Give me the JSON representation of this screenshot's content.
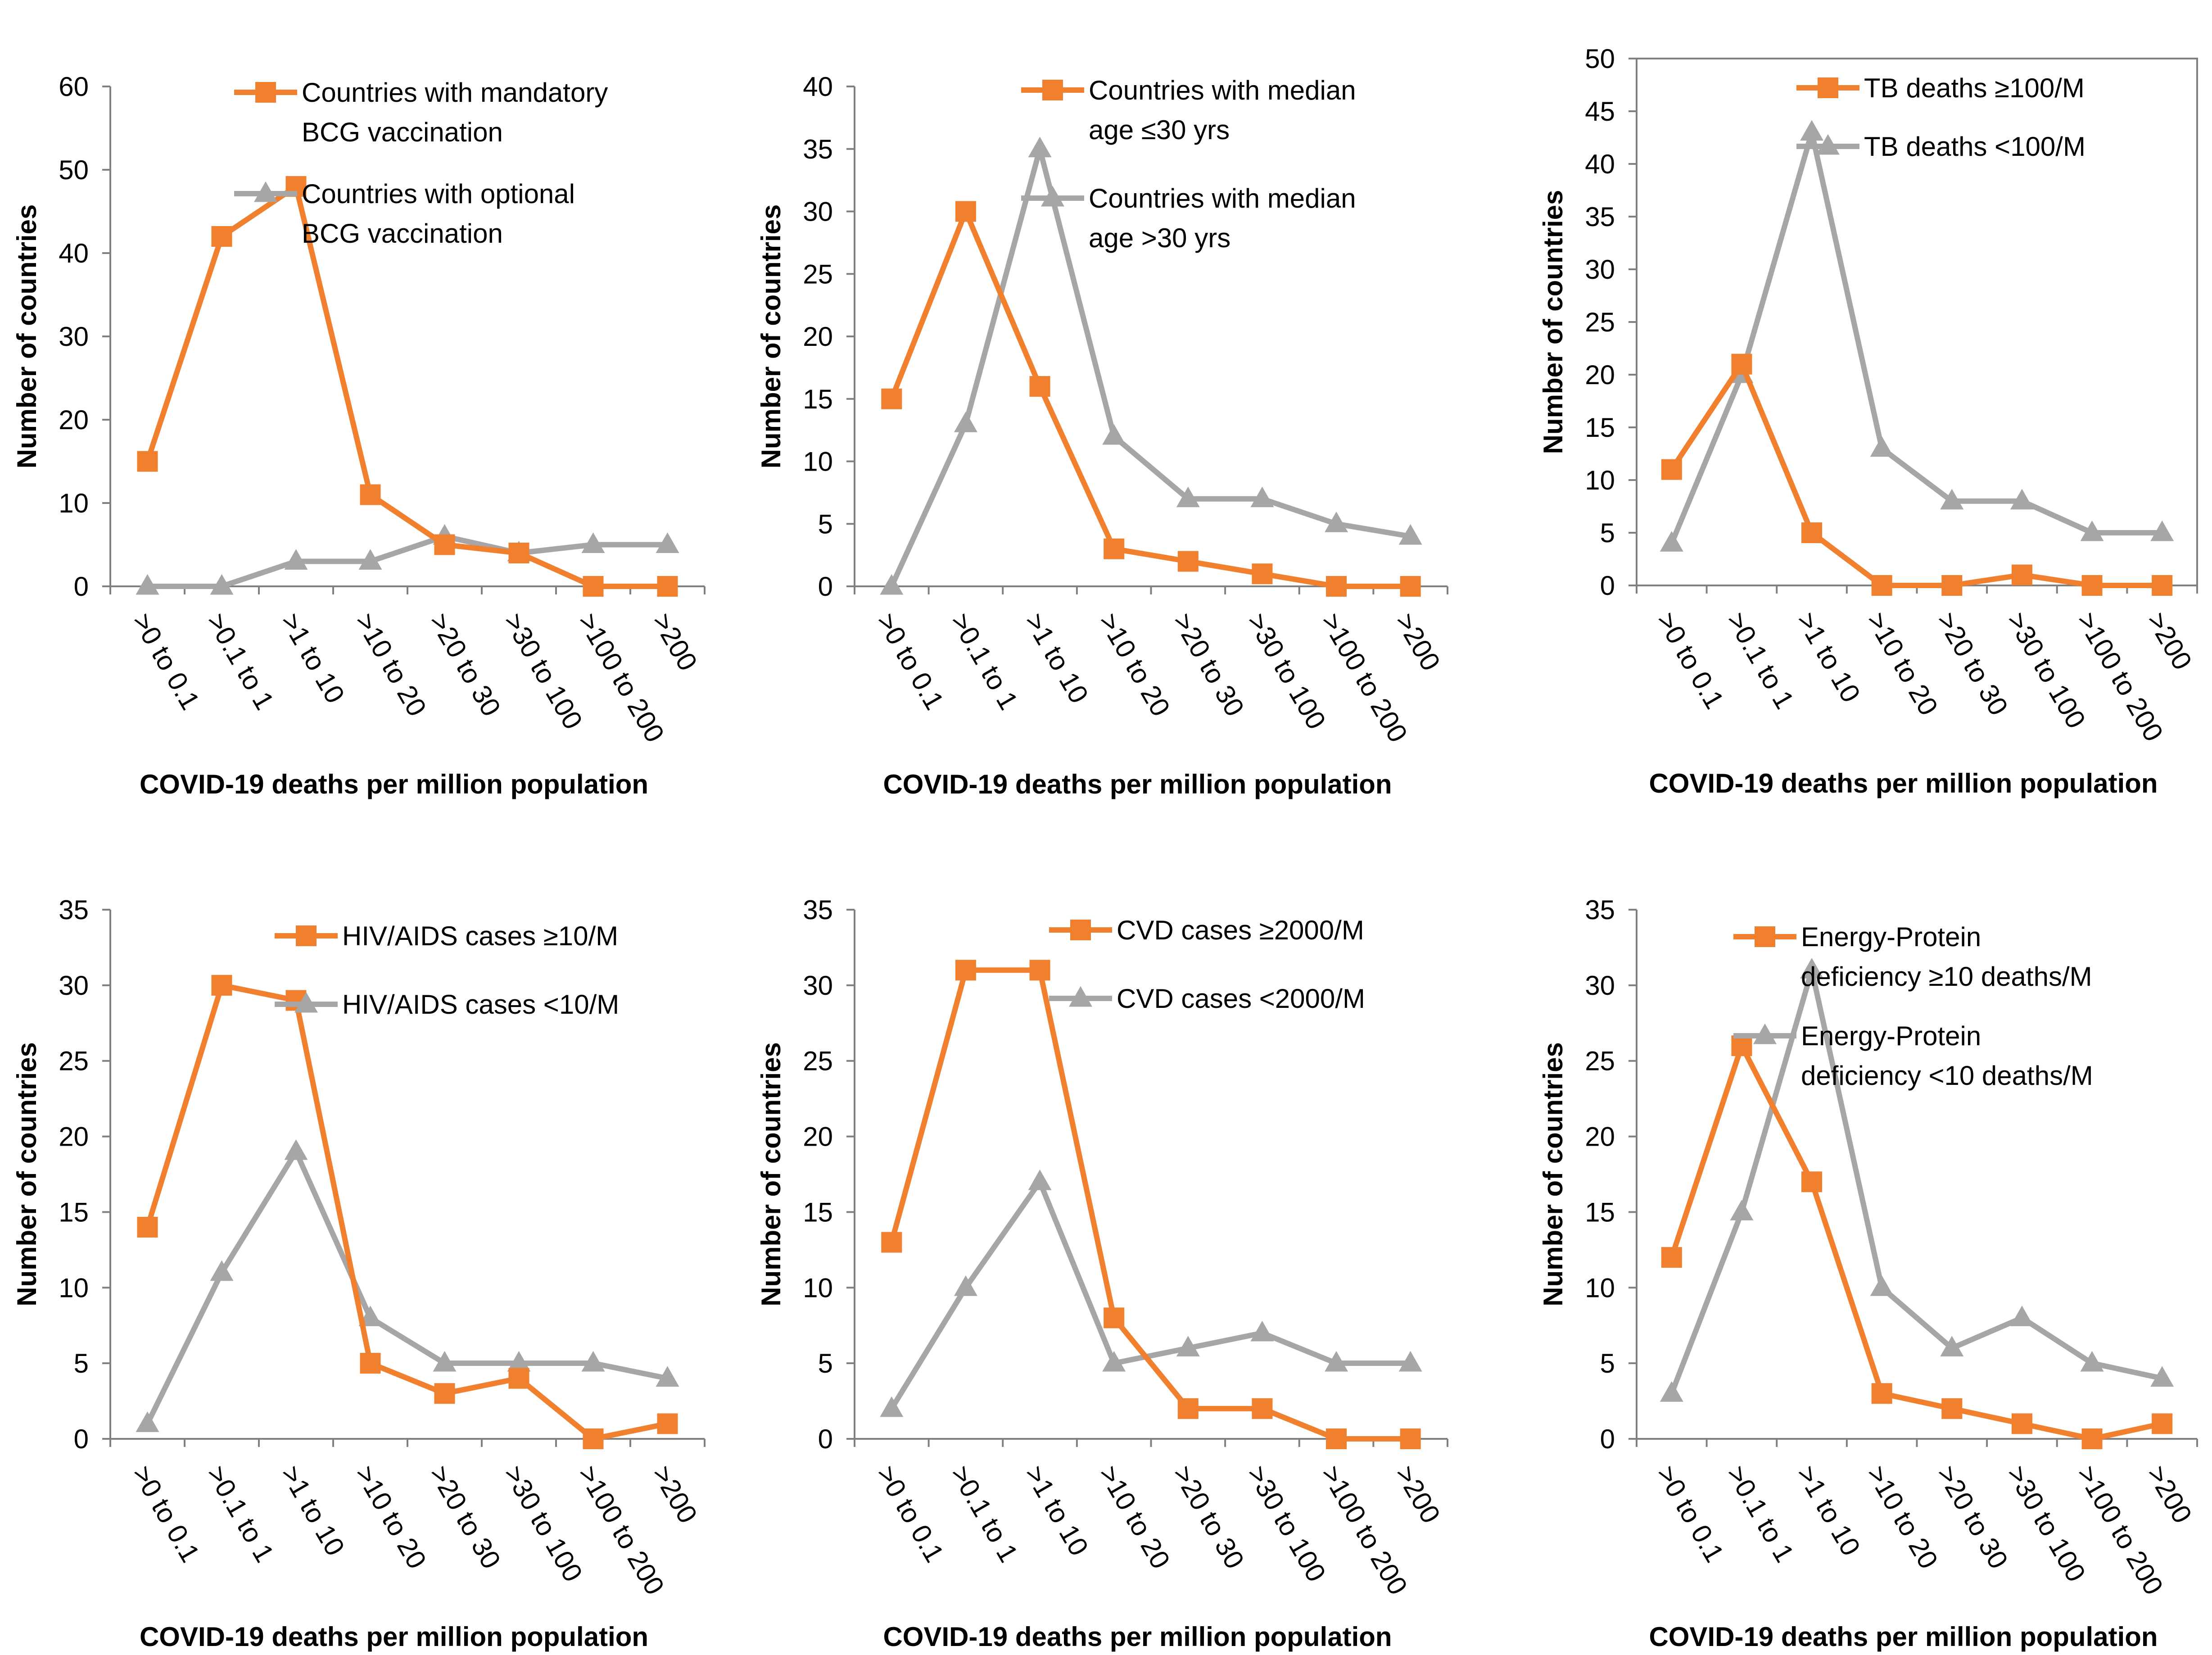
{
  "colors": {
    "orange": "#F07F2E",
    "gray": "#A6A6A6",
    "axis": "#808080"
  },
  "chart_data": [
    {
      "type": "line",
      "categories": [
        ">0 to 0.1",
        ">0.1 to 1",
        ">1 to 10",
        ">10 to 20",
        ">20 to 30",
        ">30 to 100",
        ">100 to 200",
        ">200"
      ],
      "ylim": [
        0,
        60
      ],
      "ystep": 10,
      "xlabel": "COVID-19 deaths per million population",
      "ylabel": "Number of countries",
      "legend_position": "top-right",
      "series": [
        {
          "name_lines": [
            "Countries with mandatory",
            "BCG vaccination"
          ],
          "color": "orange",
          "marker": "square",
          "values": [
            15,
            42,
            48,
            11,
            5,
            4,
            0,
            0
          ]
        },
        {
          "name_lines": [
            "Countries with optional",
            "BCG vaccination"
          ],
          "color": "gray",
          "marker": "triangle",
          "values": [
            0,
            0,
            3,
            3,
            6,
            4,
            5,
            5
          ]
        }
      ]
    },
    {
      "type": "line",
      "categories": [
        ">0 to 0.1",
        ">0.1 to 1",
        ">1 to 10",
        ">10 to 20",
        ">20 to 30",
        ">30 to 100",
        ">100 to 200",
        ">200"
      ],
      "ylim": [
        0,
        40
      ],
      "ystep": 5,
      "xlabel": "COVID-19 deaths per million population",
      "ylabel": "Number of countries",
      "legend_position": "top-right",
      "series": [
        {
          "name_lines": [
            "Countries with median",
            "age ≤30 yrs"
          ],
          "color": "orange",
          "marker": "square",
          "values": [
            15,
            30,
            16,
            3,
            2,
            1,
            0,
            0
          ]
        },
        {
          "name_lines": [
            "Countries with median",
            "age >30 yrs"
          ],
          "color": "gray",
          "marker": "triangle",
          "values": [
            0,
            13,
            35,
            12,
            7,
            7,
            5,
            4
          ]
        }
      ]
    },
    {
      "type": "line",
      "categories": [
        ">0 to 0.1",
        ">0.1 to 1",
        ">1 to 10",
        ">10 to 20",
        ">20 to 30",
        ">30 to 100",
        ">100 to 200",
        ">200"
      ],
      "ylim": [
        0,
        50
      ],
      "ystep": 5,
      "xlabel": "COVID-19 deaths per million population",
      "ylabel": "Number of countries",
      "legend_position": "top-right",
      "series": [
        {
          "name_lines": [
            "TB deaths ≥100/M"
          ],
          "color": "orange",
          "marker": "square",
          "values": [
            11,
            21,
            5,
            0,
            0,
            1,
            0,
            0
          ]
        },
        {
          "name_lines": [
            "TB deaths <100/M"
          ],
          "color": "gray",
          "marker": "triangle",
          "values": [
            4,
            20,
            43,
            13,
            8,
            8,
            5,
            5
          ]
        }
      ]
    },
    {
      "type": "line",
      "categories": [
        ">0 to 0.1",
        ">0.1 to 1",
        ">1 to 10",
        ">10 to 20",
        ">20 to 30",
        ">30 to 100",
        ">100 to 200",
        ">200"
      ],
      "ylim": [
        0,
        35
      ],
      "ystep": 5,
      "xlabel": "COVID-19 deaths per million population",
      "ylabel": "Number of countries",
      "legend_position": "top-right",
      "series": [
        {
          "name_lines": [
            "HIV/AIDS cases ≥10/M"
          ],
          "color": "orange",
          "marker": "square",
          "values": [
            14,
            30,
            29,
            5,
            3,
            4,
            0,
            1
          ]
        },
        {
          "name_lines": [
            "HIV/AIDS cases <10/M"
          ],
          "color": "gray",
          "marker": "triangle",
          "values": [
            1,
            11,
            19,
            8,
            5,
            5,
            5,
            4
          ]
        }
      ]
    },
    {
      "type": "line",
      "categories": [
        ">0 to 0.1",
        ">0.1 to 1",
        ">1 to 10",
        ">10 to 20",
        ">20 to 30",
        ">30 to 100",
        ">100 to 200",
        ">200"
      ],
      "ylim": [
        0,
        35
      ],
      "ystep": 5,
      "xlabel": "COVID-19 deaths per million population",
      "ylabel": "Number of countries",
      "legend_position": "top-right",
      "series": [
        {
          "name_lines": [
            "CVD cases ≥2000/M"
          ],
          "color": "orange",
          "marker": "square",
          "values": [
            13,
            31,
            31,
            8,
            2,
            2,
            0,
            0
          ]
        },
        {
          "name_lines": [
            "CVD cases <2000/M"
          ],
          "color": "gray",
          "marker": "triangle",
          "values": [
            2,
            10,
            17,
            5,
            6,
            7,
            5,
            5
          ]
        }
      ]
    },
    {
      "type": "line",
      "categories": [
        ">0 to 0.1",
        ">0.1 to 1",
        ">1 to 10",
        ">10 to 20",
        ">20 to 30",
        ">30 to 100",
        ">100 to 200",
        ">200"
      ],
      "ylim": [
        0,
        35
      ],
      "ystep": 5,
      "xlabel": "COVID-19 deaths per million population",
      "ylabel": "Number of countries",
      "legend_position": "top-right",
      "series": [
        {
          "name_lines": [
            "Energy-Protein",
            "deficiency ≥10 deaths/M"
          ],
          "color": "orange",
          "marker": "square",
          "values": [
            12,
            26,
            17,
            3,
            2,
            1,
            0,
            1
          ]
        },
        {
          "name_lines": [
            "Energy-Protein",
            "deficiency <10 deaths/M"
          ],
          "color": "gray",
          "marker": "triangle",
          "values": [
            3,
            15,
            31,
            10,
            6,
            8,
            5,
            4
          ]
        }
      ]
    }
  ]
}
